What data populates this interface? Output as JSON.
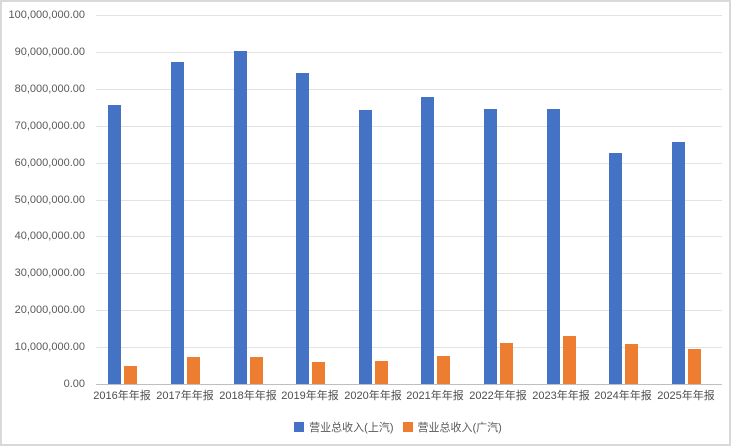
{
  "chart_style": {
    "background": "#FFFFFF",
    "frame_border_color": "#D9D9D9",
    "gridline_color": "#E2E2E2",
    "axis_line_color": "#BFBFBF",
    "tick_label_color": "#595959",
    "series_colors": [
      "#4472C4",
      "#ED7D31"
    ]
  },
  "chart_data": {
    "type": "bar",
    "categories": [
      "2016年年报",
      "2017年年报",
      "2018年年报",
      "2019年年报",
      "2020年年报",
      "2021年年报",
      "2022年年报",
      "2023年年报",
      "2024年年报",
      "2025年年报"
    ],
    "series": [
      {
        "name": "营业总收入(上汽)",
        "color": "#4472C4",
        "values": [
          75600000,
          87200000,
          90200000,
          84400000,
          74200000,
          77900000,
          74400000,
          74500000,
          62600000,
          65600000
        ]
      },
      {
        "name": "营业总收入(广汽)",
        "color": "#ED7D31",
        "values": [
          4900000,
          7200000,
          7300000,
          6000000,
          6300000,
          7600000,
          11000000,
          13000000,
          10800000,
          9600000
        ]
      }
    ],
    "ylim": [
      0,
      100000000
    ],
    "ytick_step": 10000000,
    "ytick_labels": [
      "100,000,000.00",
      "90,000,000.00",
      "80,000,000.00",
      "70,000,000.00",
      "60,000,000.00",
      "50,000,000.00",
      "40,000,000.00",
      "30,000,000.00",
      "20,000,000.00",
      "10,000,000.00",
      "0.00"
    ],
    "grid": true,
    "legend_position": "bottom",
    "legend": [
      "营业总收入(上汽)",
      "营业总收入(广汽)"
    ]
  }
}
